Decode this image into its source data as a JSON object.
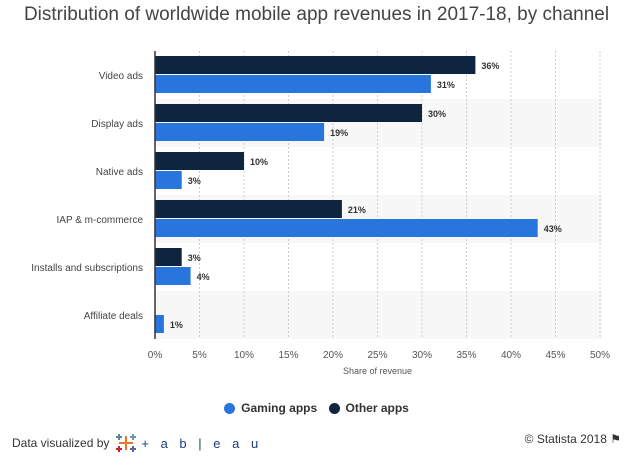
{
  "title": "Distribution of worldwide mobile app revenues in 2017-18, by channel",
  "chart_data": {
    "type": "bar",
    "orientation": "horizontal",
    "title": "Distribution of worldwide mobile app revenues in 2017-18, by channel",
    "xlabel": "Share of revenue",
    "ylabel": "",
    "xlim": [
      0,
      50
    ],
    "xticks": [
      "0%",
      "5%",
      "10%",
      "15%",
      "20%",
      "25%",
      "30%",
      "35%",
      "40%",
      "45%",
      "50%"
    ],
    "grid": true,
    "legend": "bottom",
    "categories": [
      "Video ads",
      "Display ads",
      "Native ads",
      "IAP & m-commerce",
      "Installs and subscriptions",
      "Affiliate deals"
    ],
    "series": [
      {
        "name": "Other apps",
        "color": "#0f243e",
        "values": [
          36,
          30,
          10,
          21,
          3,
          null
        ]
      },
      {
        "name": "Gaming apps",
        "color": "#2876dd",
        "values": [
          31,
          19,
          3,
          43,
          4,
          1
        ]
      }
    ]
  },
  "legend": {
    "items": [
      {
        "label": "Gaming apps",
        "color": "#2876dd"
      },
      {
        "label": "Other apps",
        "color": "#0f243e"
      }
    ]
  },
  "footer": {
    "credit": "Data visualized by",
    "logo": "+ a b | e a u",
    "copyright": "© Statista 2018"
  }
}
